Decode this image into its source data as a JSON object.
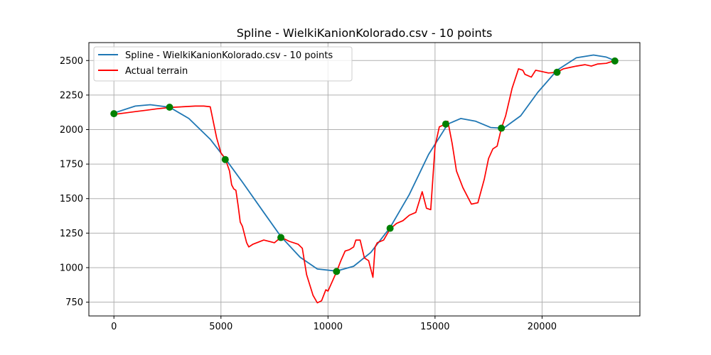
{
  "chart_data": {
    "type": "line",
    "title": "Spline - WielkiKanionKolorado.csv - 10 points",
    "xlabel": "",
    "ylabel": "",
    "xlim": [
      -1170,
      24570
    ],
    "ylim": [
      650,
      2630
    ],
    "xticks": [
      0,
      5000,
      10000,
      15000,
      20000
    ],
    "yticks": [
      750,
      1000,
      1250,
      1500,
      1750,
      2000,
      2250,
      2500
    ],
    "grid": true,
    "legend_position": "top-left",
    "series": [
      {
        "name": "Spline - WielkiKanionKolorado.csv - 10 points",
        "color": "#1f77b4",
        "x": [
          0,
          1000,
          1700,
          2600,
          3500,
          4500,
          5200,
          6000,
          7000,
          7800,
          8700,
          9500,
          10400,
          11200,
          12000,
          12900,
          13800,
          14700,
          15600,
          16200,
          16900,
          17600,
          18200,
          19000,
          19800,
          20700,
          21600,
          22400,
          23000,
          23400
        ],
        "y": [
          2120,
          2170,
          2180,
          2162,
          2080,
          1930,
          1790,
          1620,
          1400,
          1225,
          1075,
          990,
          975,
          1010,
          1110,
          1290,
          1530,
          1820,
          2040,
          2080,
          2060,
          2015,
          2010,
          2100,
          2270,
          2430,
          2520,
          2540,
          2525,
          2500
        ]
      },
      {
        "name": "Actual terrain",
        "color": "#ff0000",
        "x": [
          0,
          500,
          1000,
          1500,
          2000,
          2600,
          3200,
          3800,
          4200,
          4500,
          4800,
          5000,
          5200,
          5400,
          5500,
          5600,
          5700,
          5800,
          5900,
          6000,
          6200,
          6300,
          6500,
          7000,
          7500,
          7800,
          8200,
          8600,
          8800,
          9000,
          9300,
          9500,
          9700,
          9900,
          10000,
          10400,
          10600,
          10800,
          11000,
          11200,
          11300,
          11500,
          11700,
          11900,
          12100,
          12200,
          12300,
          12600,
          12900,
          13200,
          13500,
          13800,
          14100,
          14400,
          14600,
          14800,
          15000,
          15200,
          15500,
          15600,
          15800,
          16000,
          16300,
          16700,
          17000,
          17300,
          17500,
          17700,
          17900,
          18100,
          18300,
          18600,
          18900,
          19100,
          19200,
          19500,
          19700,
          20000,
          20300,
          20700,
          21000,
          21300,
          21600,
          22000,
          22300,
          22600,
          23000,
          23400
        ],
        "y": [
          2110,
          2120,
          2130,
          2140,
          2150,
          2160,
          2165,
          2170,
          2170,
          2165,
          1940,
          1830,
          1790,
          1700,
          1600,
          1570,
          1560,
          1450,
          1330,
          1300,
          1180,
          1150,
          1170,
          1200,
          1180,
          1220,
          1190,
          1170,
          1140,
          950,
          800,
          745,
          760,
          840,
          830,
          970,
          1050,
          1120,
          1130,
          1150,
          1200,
          1200,
          1070,
          1050,
          930,
          1150,
          1180,
          1200,
          1280,
          1320,
          1340,
          1380,
          1400,
          1550,
          1430,
          1420,
          1880,
          2020,
          2040,
          2060,
          1900,
          1700,
          1580,
          1460,
          1470,
          1640,
          1790,
          1860,
          1880,
          2010,
          2100,
          2300,
          2440,
          2430,
          2400,
          2380,
          2430,
          2420,
          2410,
          2415,
          2440,
          2450,
          2460,
          2470,
          2460,
          2475,
          2480,
          2500
        ]
      }
    ],
    "sample_points": {
      "x": [
        0,
        2600,
        5200,
        7800,
        10400,
        12900,
        15500,
        18100,
        20700,
        23400
      ],
      "y": [
        2115,
        2162,
        1783,
        1218,
        972,
        1285,
        2040,
        2010,
        2415,
        2497
      ],
      "color": "#008000"
    }
  }
}
